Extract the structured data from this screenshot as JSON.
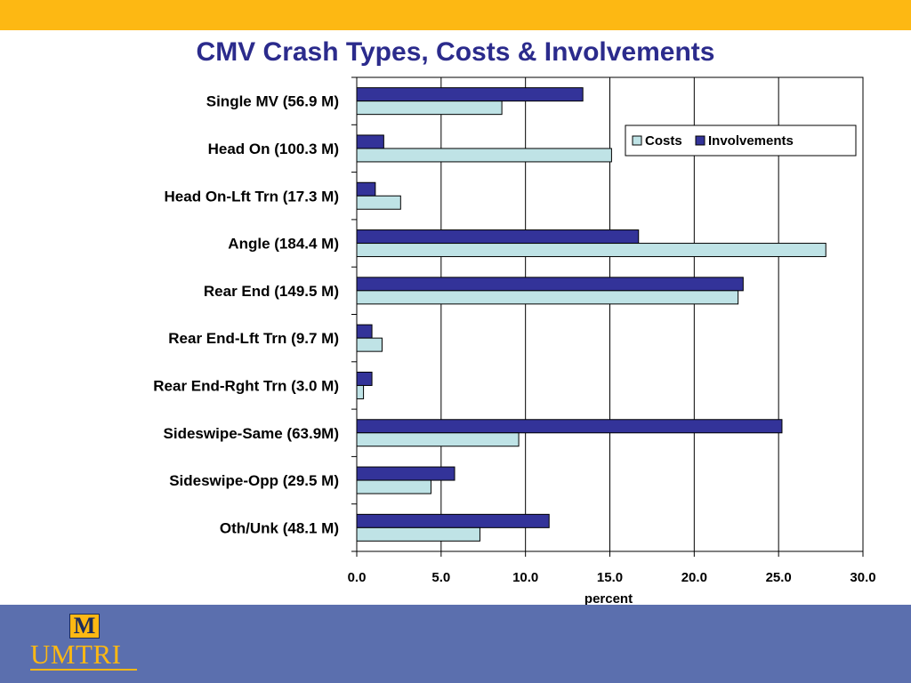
{
  "slide": {
    "title": "CMV Crash Types, Costs & Involvements",
    "logo_mark": "M",
    "logo_text": "UMTRI",
    "colors": {
      "top_band": "#FDB813",
      "bottom_band": "#5B6FAE",
      "title": "#2B2B8C"
    }
  },
  "chart_data": {
    "type": "bar",
    "orientation": "horizontal",
    "title": "",
    "xlabel": "percent",
    "ylabel": "",
    "xlim": [
      0,
      30
    ],
    "x_ticks": [
      "0.0",
      "5.0",
      "10.0",
      "15.0",
      "20.0",
      "25.0",
      "30.0"
    ],
    "grid": "vertical gridlines",
    "legend_position": "top-right",
    "categories": [
      "Single MV (56.9 M)",
      "Head On (100.3 M)",
      "Head On-Lft Trn (17.3 M)",
      "Angle (184.4 M)",
      "Rear End (149.5 M)",
      "Rear End-Lft Trn (9.7 M)",
      "Rear End-Rght Trn (3.0 M)",
      "Sideswipe-Same (63.9M)",
      "Sideswipe-Opp (29.5 M)",
      "Oth/Unk (48.1 M)"
    ],
    "series": [
      {
        "name": "Involvements",
        "color": "#333399",
        "values": [
          13.4,
          1.6,
          1.1,
          16.7,
          22.9,
          0.9,
          0.9,
          25.2,
          5.8,
          11.4
        ]
      },
      {
        "name": "Costs",
        "color": "#BFE3E6",
        "values": [
          8.6,
          15.1,
          2.6,
          27.8,
          22.6,
          1.5,
          0.4,
          9.6,
          4.4,
          7.3
        ]
      }
    ],
    "legend_order": [
      "Costs",
      "Involvements"
    ]
  }
}
